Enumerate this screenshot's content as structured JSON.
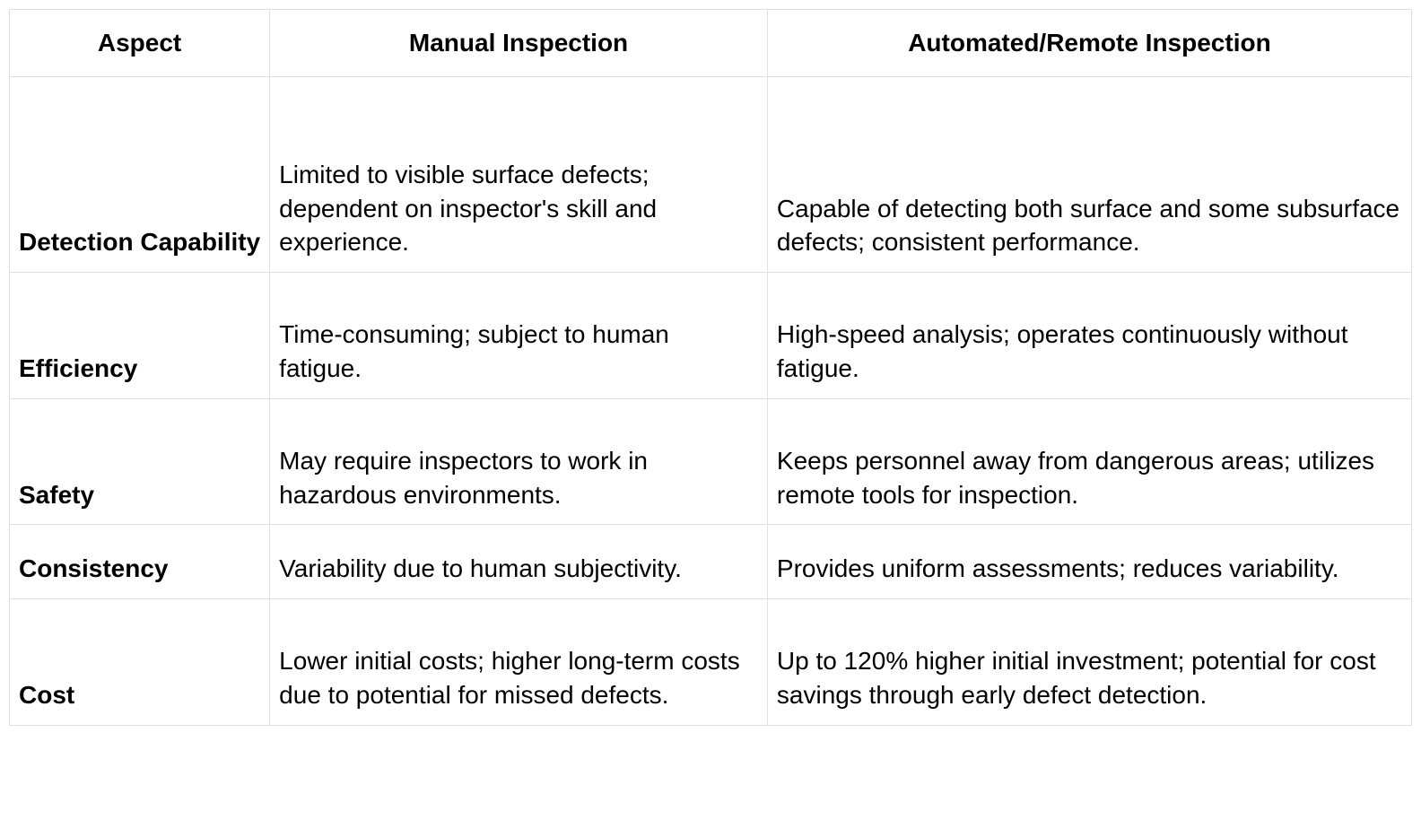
{
  "table": {
    "columns": [
      "Aspect",
      "Manual Inspection",
      "Automated/Remote Inspection"
    ],
    "column_widths_pct": [
      13,
      38,
      49
    ],
    "border_color": "#e0e0e0",
    "background_color": "#ffffff",
    "text_color": "#000000",
    "header_fontsize_pt": 21,
    "cell_fontsize_pt": 21,
    "header_fontweight": "bold",
    "aspect_fontweight": "bold",
    "rows": [
      {
        "aspect": "Detection Capability",
        "manual": "Limited to visible surface defects; dependent on inspector's skill and experience.",
        "automated": "Capable of detecting both surface and some subsurface defects; consistent performance.",
        "row_height_class": "tall"
      },
      {
        "aspect": "Efficiency",
        "manual": "Time-consuming; subject to human fatigue.",
        "automated": "High-speed analysis; operates continuously without fatigue.",
        "row_height_class": "med"
      },
      {
        "aspect": "Safety",
        "manual": "May require inspectors to work in hazardous environments.",
        "automated": "Keeps personnel away from dangerous areas; utilizes remote tools for inspection.",
        "row_height_class": "med"
      },
      {
        "aspect": "Consistency",
        "manual": "Variability due to human subjectivity.",
        "automated": "Provides uniform assessments; reduces variability.",
        "row_height_class": "short"
      },
      {
        "aspect": "Cost",
        "manual": "Lower initial costs; higher long-term costs due to potential for missed defects.",
        "automated": "Up to 120% higher initial investment; potential for cost savings through early defect detection.",
        "row_height_class": "med"
      }
    ]
  }
}
